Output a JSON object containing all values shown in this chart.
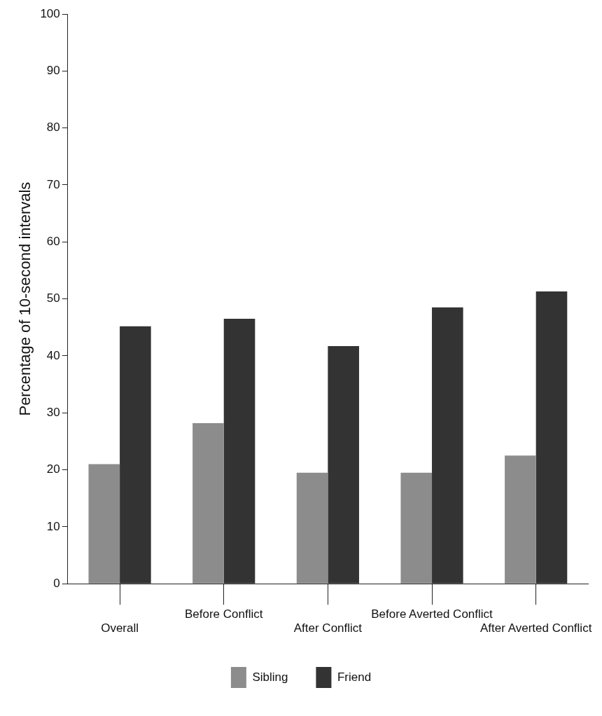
{
  "chart_data": {
    "type": "bar",
    "ylabel": "Percentage of 10-second intervals",
    "categories": [
      "Overall",
      "Before Conflict",
      "After Conflict",
      "Before Averted Conflict",
      "After Averted Conflict"
    ],
    "series": [
      {
        "name": "Sibling",
        "color": "#8c8c8c",
        "values": [
          21,
          28.2,
          19.5,
          19.5,
          22.5
        ]
      },
      {
        "name": "Friend",
        "color": "#333333",
        "values": [
          45.2,
          46.5,
          41.7,
          48.5,
          51.3
        ]
      }
    ],
    "ylim": [
      0,
      100
    ],
    "yticks": [
      0,
      10,
      20,
      30,
      40,
      50,
      60,
      70,
      80,
      90,
      100
    ],
    "grid": false,
    "legend": "bottom"
  }
}
